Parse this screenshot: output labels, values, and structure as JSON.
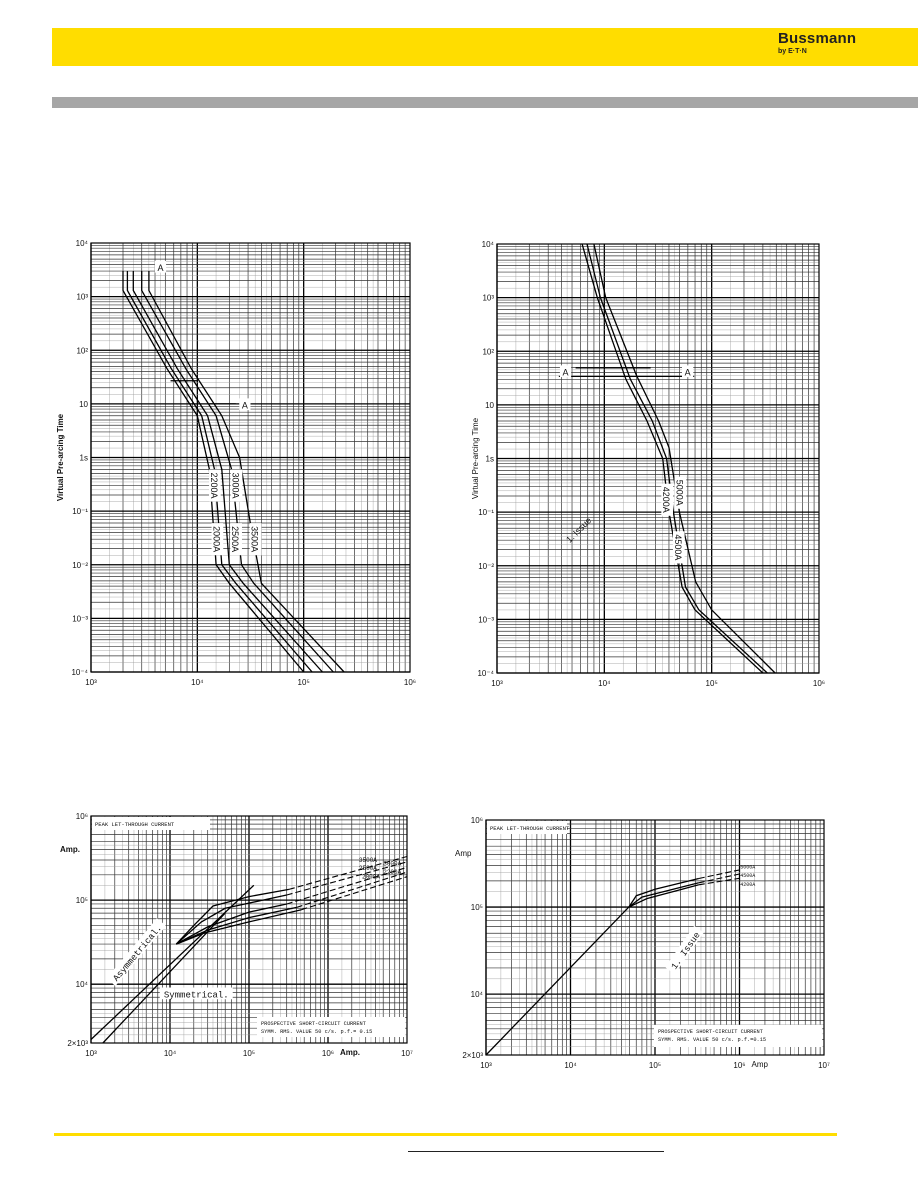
{
  "header": {
    "brand": "Bussmann",
    "brand_sub": "by E·T·N",
    "brand_color": "#FFDD00"
  },
  "chart_data": [
    {
      "type": "line",
      "title": "",
      "ylabel": "Virtual Pre-arcing Time",
      "xlabel": "",
      "xscale": "log",
      "yscale": "log",
      "xlim": [
        1000,
        1000000
      ],
      "ylim": [
        0.0001,
        10000
      ],
      "grid": true,
      "xticks": [
        {
          "v": 1000,
          "label": "10³"
        },
        {
          "v": 10000,
          "label": "10⁴"
        },
        {
          "v": 100000,
          "label": "10⁵"
        },
        {
          "v": 1000000,
          "label": "10⁶"
        }
      ],
      "yticks": [
        {
          "v": 10000,
          "label": "10⁴"
        },
        {
          "v": 1000,
          "label": "10³"
        },
        {
          "v": 100,
          "label": "10²"
        },
        {
          "v": 10,
          "label": "10"
        },
        {
          "v": 1,
          "label": "1s"
        },
        {
          "v": 0.1,
          "label": "10⁻¹"
        },
        {
          "v": 0.01,
          "label": "10⁻²"
        },
        {
          "v": 0.001,
          "label": "10⁻³"
        },
        {
          "v": 0.0001,
          "label": "10⁻⁴"
        }
      ],
      "series": [
        {
          "name": "2000A",
          "points": [
            [
              2000,
              3000
            ],
            [
              2000,
              1300
            ],
            [
              5200,
              45
            ],
            [
              10000,
              6
            ],
            [
              13000,
              0.6
            ],
            [
              15000,
              0.01
            ],
            [
              20000,
              0.0045
            ],
            [
              100000,
              0.0001
            ]
          ]
        },
        {
          "name": "2200A",
          "points": [
            [
              2200,
              3000
            ],
            [
              2200,
              1300
            ],
            [
              5700,
              45
            ],
            [
              11000,
              6
            ],
            [
              14500,
              0.6
            ],
            [
              17000,
              0.01
            ],
            [
              23000,
              0.0045
            ],
            [
              120000,
              0.0001
            ]
          ]
        },
        {
          "name": "2500A",
          "points": [
            [
              2500,
              3000
            ],
            [
              2500,
              1300
            ],
            [
              6500,
              45
            ],
            [
              12500,
              6
            ],
            [
              17000,
              0.6
            ],
            [
              20000,
              0.01
            ],
            [
              27000,
              0.0045
            ],
            [
              150000,
              0.0001
            ]
          ]
        },
        {
          "name": "3000A",
          "points": [
            [
              3000,
              3000
            ],
            [
              3000,
              1300
            ],
            [
              7800,
              45
            ],
            [
              15000,
              6
            ],
            [
              21000,
              0.6
            ],
            [
              26000,
              0.01
            ],
            [
              34000,
              0.0045
            ],
            [
              190000,
              0.0001
            ]
          ]
        },
        {
          "name": "3500A",
          "points": [
            [
              3500,
              3000
            ],
            [
              3500,
              1300
            ],
            [
              8800,
              45
            ],
            [
              17000,
              6
            ],
            [
              25000,
              1
            ],
            [
              32000,
              0.05
            ],
            [
              40000,
              0.0045
            ],
            [
              240000,
              0.0001
            ]
          ]
        }
      ],
      "reference_lines": [
        [
          [
            5600,
            27
          ],
          [
            10000,
            27
          ]
        ],
        [
          [
            13000,
            10
          ],
          [
            23000,
            10
          ]
        ]
      ],
      "annotations": [
        {
          "text": "2200A",
          "x": 14200,
          "y": 0.3,
          "rotate": 90
        },
        {
          "text": "2000A",
          "x": 15000,
          "y": 0.03,
          "rotate": 90
        },
        {
          "text": "3000A",
          "x": 22700,
          "y": 0.3,
          "rotate": 90
        },
        {
          "text": "2500A",
          "x": 22500,
          "y": 0.03,
          "rotate": 90
        },
        {
          "text": "3500A",
          "x": 34300,
          "y": 0.03,
          "rotate": 90
        },
        {
          "text": "A",
          "x": 4500,
          "y": 3400,
          "rotate": 0
        },
        {
          "text": "A",
          "x": 28000,
          "y": 9.3,
          "rotate": 0
        }
      ]
    },
    {
      "type": "line",
      "title": "",
      "ylabel": "Virtual Pre-arcing Time",
      "xlabel": "",
      "xscale": "log",
      "yscale": "log",
      "xlim": [
        1000,
        1000000
      ],
      "ylim": [
        0.0001,
        10000
      ],
      "grid": true,
      "xticks": [
        {
          "v": 1000,
          "label": "10³"
        },
        {
          "v": 10000,
          "label": "10⁴"
        },
        {
          "v": 100000,
          "label": "10⁵"
        },
        {
          "v": 1000000,
          "label": "10⁶"
        }
      ],
      "yticks": [
        {
          "v": 10000,
          "label": "10⁴"
        },
        {
          "v": 1000,
          "label": "10³"
        },
        {
          "v": 100,
          "label": "10²"
        },
        {
          "v": 10,
          "label": "10"
        },
        {
          "v": 1,
          "label": "1s"
        },
        {
          "v": 0.1,
          "label": "10⁻¹"
        },
        {
          "v": 0.01,
          "label": "10⁻²"
        },
        {
          "v": 0.001,
          "label": "10⁻³"
        },
        {
          "v": 0.0001,
          "label": "10⁻⁴"
        }
      ],
      "series": [
        {
          "name": "4200A",
          "points": [
            [
              6200,
              10000
            ],
            [
              8600,
              1000
            ],
            [
              15900,
              30
            ],
            [
              25000,
              5
            ],
            [
              35000,
              1
            ],
            [
              40000,
              0.1
            ],
            [
              53000,
              0.004
            ],
            [
              70000,
              0.0015
            ],
            [
              300000,
              0.0001
            ]
          ]
        },
        {
          "name": "4500A",
          "points": [
            [
              6900,
              10000
            ],
            [
              9200,
              1000
            ],
            [
              17500,
              30
            ],
            [
              28000,
              5
            ],
            [
              38000,
              1
            ],
            [
              44000,
              0.1
            ],
            [
              57000,
              0.004
            ],
            [
              76000,
              0.0015
            ],
            [
              330000,
              0.0001
            ]
          ]
        },
        {
          "name": "5000A",
          "points": [
            [
              8000,
              10000
            ],
            [
              10300,
              1000
            ],
            [
              20000,
              35
            ],
            [
              32000,
              5
            ],
            [
              40000,
              1.6
            ],
            [
              50000,
              0.1
            ],
            [
              71000,
              0.005
            ],
            [
              100000,
              0.0015
            ],
            [
              390000,
              0.0001
            ]
          ]
        }
      ],
      "reference_lines": [
        [
          [
            5400,
            49
          ],
          [
            27000,
            49
          ]
        ],
        [
          [
            3770,
            34
          ],
          [
            68700,
            34
          ]
        ]
      ],
      "annotations": [
        {
          "text": "4200A",
          "x": 37400,
          "y": 0.17,
          "rotate": 90
        },
        {
          "text": "5000A",
          "x": 49600,
          "y": 0.23,
          "rotate": 90
        },
        {
          "text": "4500A",
          "x": 48000,
          "y": 0.022,
          "rotate": 90
        },
        {
          "text": "A",
          "x": 4350,
          "y": 40,
          "rotate": 0
        },
        {
          "text": "A",
          "x": 59700,
          "y": 40,
          "rotate": 0
        },
        {
          "text": "1. Issue",
          "x": 5800,
          "y": 0.046,
          "rotate": -45
        }
      ]
    },
    {
      "type": "line",
      "title": "PEAK LET-THROUGH CURRENT",
      "ylabel": "Amp.",
      "xlabel": "Amp.",
      "xscale": "log",
      "yscale": "log",
      "xlim": [
        1000,
        10000000
      ],
      "ylim": [
        2000,
        1000000
      ],
      "grid": true,
      "xticks": [
        {
          "v": 1000,
          "label": "10³"
        },
        {
          "v": 10000,
          "label": "10⁴"
        },
        {
          "v": 100000,
          "label": "10⁵"
        },
        {
          "v": 1000000,
          "label": "10⁶"
        },
        {
          "v": 10000000,
          "label": "10⁷"
        }
      ],
      "yticks": [
        {
          "v": 1000000,
          "label": "10⁶"
        },
        {
          "v": 100000,
          "label": "10⁵"
        },
        {
          "v": 10000,
          "label": "10⁴"
        },
        {
          "v": 2000,
          "label": "2×10³"
        }
      ],
      "note_lines": [
        "PROSPECTIVE SHORT-CIRCUIT CURRENT",
        "SYMM. RMS. VALUE  50 c/s. p.f.= 0.15"
      ],
      "series": [
        {
          "name": "Asymmetrical.",
          "points": [
            [
              1000,
              2200
            ],
            [
              115000,
              150000
            ]
          ]
        },
        {
          "name": "Symmetrical.",
          "points": [
            [
              1414,
              2000
            ],
            [
              50000,
              70000
            ]
          ]
        },
        {
          "name": "3500A",
          "points": [
            [
              12000,
              30000
            ],
            [
              20000,
              50000
            ],
            [
              35000,
              85000
            ],
            [
              100000,
              110000
            ],
            [
              320000,
              134000
            ]
          ],
          "dashed_points": [
            [
              320000,
              134000
            ],
            [
              10000000,
              330000
            ]
          ]
        },
        {
          "name": "3000A",
          "points": [
            [
              12000,
              30000
            ],
            [
              25000,
              55000
            ],
            [
              50000,
              80000
            ],
            [
              150000,
              100000
            ],
            [
              300000,
              115000
            ]
          ],
          "dashed_points": [
            [
              300000,
              115000
            ],
            [
              10000000,
              285000
            ]
          ]
        },
        {
          "name": "2500A",
          "points": [
            [
              12000,
              30000
            ],
            [
              30000,
              48000
            ],
            [
              100000,
              72000
            ],
            [
              300000,
              90000
            ]
          ],
          "dashed_points": [
            [
              300000,
              90000
            ],
            [
              10000000,
              245000
            ]
          ]
        },
        {
          "name": "2200A",
          "points": [
            [
              12000,
              30000
            ],
            [
              30000,
              44000
            ],
            [
              100000,
              62000
            ],
            [
              400000,
              82000
            ]
          ],
          "dashed_points": [
            [
              400000,
              82000
            ],
            [
              10000000,
              215000
            ]
          ]
        },
        {
          "name": "2000A",
          "points": [
            [
              12000,
              30000
            ],
            [
              28000,
              41000
            ],
            [
              100000,
              55000
            ],
            [
              460000,
              77000
            ]
          ],
          "dashed_points": [
            [
              460000,
              77000
            ],
            [
              10000000,
              190000
            ]
          ]
        }
      ],
      "annotations": [
        {
          "text": "Asymmetrical.",
          "x": 3850,
          "y": 23500,
          "rotate": -50,
          "boxed": true
        },
        {
          "text": "Symmetrical.",
          "x": 21500,
          "y": 7500,
          "rotate": 0,
          "boxed": true
        },
        {
          "text": "3500A",
          "x": 3200000,
          "y": 300000,
          "rotate": -15
        },
        {
          "text": "3000A",
          "x": 6500000,
          "y": 270000,
          "rotate": -15
        },
        {
          "text": "2500A",
          "x": 3200000,
          "y": 240000,
          "rotate": -15
        },
        {
          "text": "2200A",
          "x": 6500000,
          "y": 215000,
          "rotate": -15
        },
        {
          "text": "2000A",
          "x": 3500000,
          "y": 190000,
          "rotate": -15
        }
      ]
    },
    {
      "type": "line",
      "title": "PEAK LET-THROUGH CURRENT",
      "ylabel": "Amp",
      "xlabel": "Amp",
      "xscale": "log",
      "yscale": "log",
      "xlim": [
        1000,
        10000000
      ],
      "ylim": [
        2000,
        1000000
      ],
      "grid": true,
      "xticks": [
        {
          "v": 1000,
          "label": "10³"
        },
        {
          "v": 10000,
          "label": "10⁴"
        },
        {
          "v": 100000,
          "label": "10⁵"
        },
        {
          "v": 1000000,
          "label": "10⁶"
        },
        {
          "v": 10000000,
          "label": "10⁷"
        }
      ],
      "yticks": [
        {
          "v": 1000000,
          "label": "10⁶"
        },
        {
          "v": 100000,
          "label": "10⁵"
        },
        {
          "v": 10000,
          "label": "10⁴"
        },
        {
          "v": 2000,
          "label": "2×10³"
        }
      ],
      "note_lines": [
        "PROSPECTIVE SHORT-CIRCUIT CURRENT",
        "SYMM. RMS. VALUE  50 c/s. p.f.=0.15"
      ],
      "series": [
        {
          "name": "",
          "points": [
            [
              1000,
              2000
            ],
            [
              49000,
              100000
            ]
          ]
        },
        {
          "name": "5000A",
          "points": [
            [
              49000,
              100000
            ],
            [
              60000,
              135000
            ],
            [
              100000,
              160000
            ],
            [
              330000,
              213000
            ]
          ],
          "dashed_points": [
            [
              330000,
              213000
            ],
            [
              1000000,
              267000
            ]
          ]
        },
        {
          "name": "4500A",
          "points": [
            [
              49000,
              100000
            ],
            [
              70000,
              130000
            ],
            [
              330000,
              190000
            ]
          ],
          "dashed_points": [
            [
              330000,
              190000
            ],
            [
              1000000,
              240000
            ]
          ]
        },
        {
          "name": "4200A",
          "points": [
            [
              49000,
              100000
            ],
            [
              80000,
              125000
            ],
            [
              330000,
              180000
            ]
          ],
          "dashed_points": [
            [
              330000,
              180000
            ],
            [
              1000000,
              214000
            ]
          ]
        }
      ],
      "annotations": [
        {
          "text": "5000A",
          "x": 1250000,
          "y": 290000,
          "rotate": -15
        },
        {
          "text": "4500A",
          "x": 1250000,
          "y": 255000,
          "rotate": -15
        },
        {
          "text": "4200A",
          "x": 1250000,
          "y": 225000,
          "rotate": -15
        },
        {
          "text": "1. Issue",
          "x": 230000,
          "y": 31600,
          "rotate": -55,
          "boxed": true
        }
      ]
    }
  ]
}
